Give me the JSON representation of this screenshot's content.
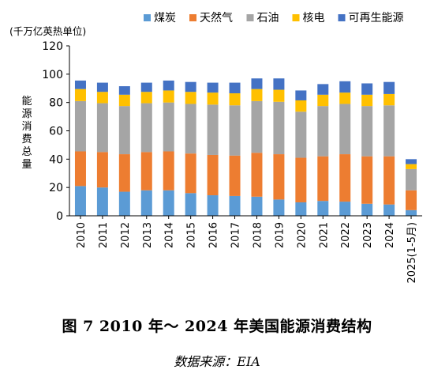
{
  "chart_data": {
    "type": "bar",
    "stacked": true,
    "unit_label": "(千万亿英热单位)",
    "ylabel": "能源消费总量",
    "ylim": [
      0,
      120
    ],
    "yticks": [
      0,
      20,
      40,
      60,
      80,
      100,
      120
    ],
    "grid": false,
    "legend_position": "top",
    "categories": [
      "2010",
      "2011",
      "2012",
      "2013",
      "2014",
      "2015",
      "2016",
      "2017",
      "2018",
      "2019",
      "2020",
      "2021",
      "2022",
      "2023",
      "2024",
      "2025(1-5月)"
    ],
    "series": [
      {
        "name": "煤炭",
        "color": "#5b9bd5",
        "values": [
          21,
          20,
          17,
          18,
          18,
          16,
          14.5,
          14,
          13.5,
          11.5,
          9.5,
          10.5,
          10,
          8.5,
          8,
          4
        ]
      },
      {
        "name": "天然气",
        "color": "#ed7d31",
        "values": [
          24.5,
          25,
          26.5,
          27,
          27.5,
          28,
          28.5,
          28.5,
          31,
          32,
          31.5,
          31.5,
          33.5,
          33.5,
          34,
          14
        ]
      },
      {
        "name": "石油",
        "color": "#a5a5a5",
        "values": [
          35.5,
          34.5,
          34,
          34.5,
          34.5,
          35,
          35.5,
          35.5,
          36.5,
          37,
          32.5,
          35.5,
          35.5,
          35.5,
          36,
          15
        ]
      },
      {
        "name": "核电",
        "color": "#ffc000",
        "values": [
          8.5,
          8,
          8,
          8,
          8.5,
          8.5,
          8.5,
          8.5,
          8.5,
          8.5,
          8,
          8,
          8,
          8,
          8,
          3.5
        ]
      },
      {
        "name": "可再生能源",
        "color": "#4472c4",
        "values": [
          6,
          6.5,
          6,
          6.5,
          7,
          7,
          7,
          7.5,
          7.5,
          8,
          7,
          7.5,
          8,
          8,
          8.5,
          3.5
        ]
      }
    ]
  },
  "figure": {
    "title": "图 7    2010 年～ 2024 年美国能源消费结构",
    "source": "数据来源：EIA"
  }
}
